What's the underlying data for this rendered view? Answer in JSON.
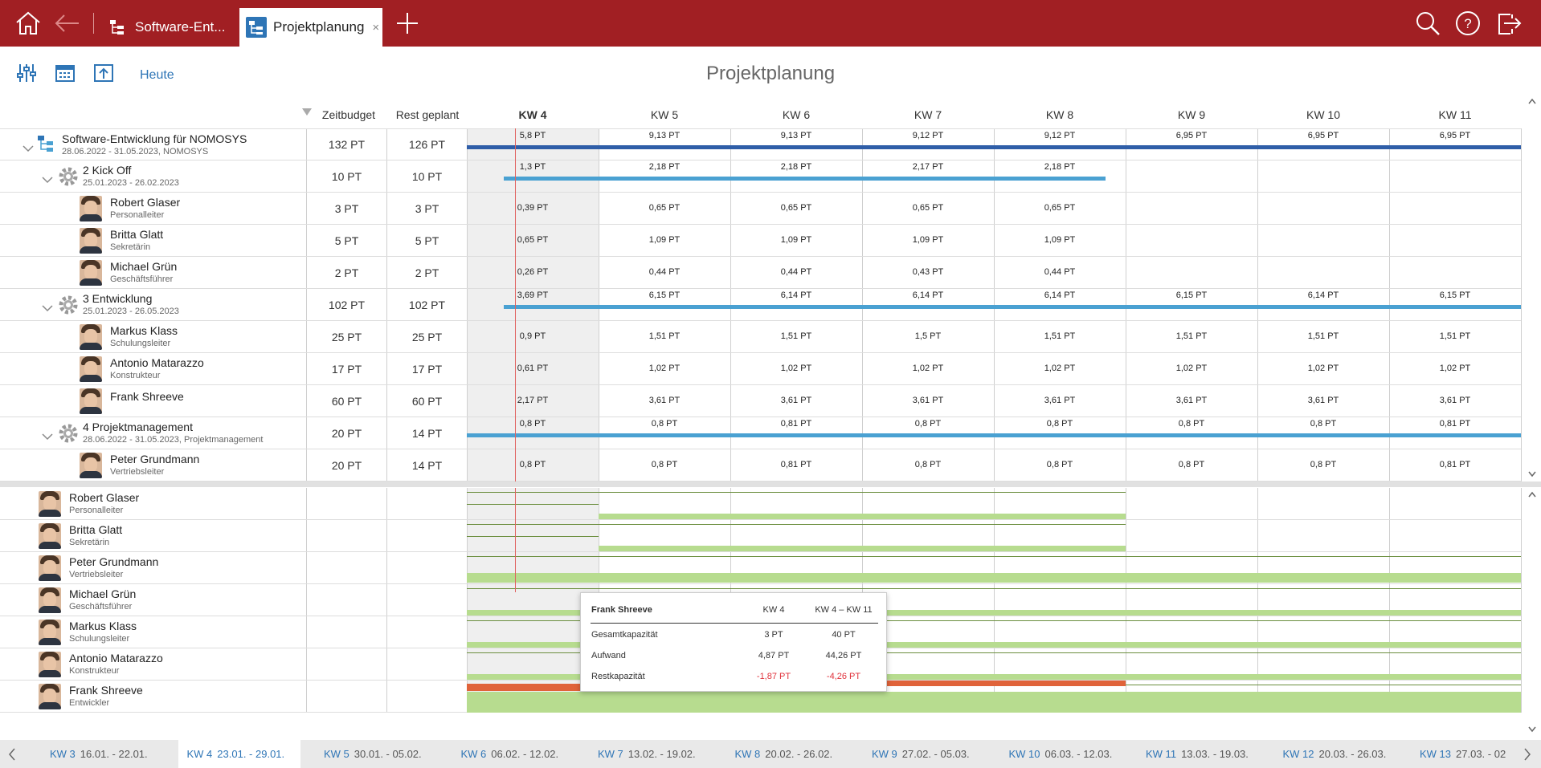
{
  "colors": {
    "topbar": "#a11f23",
    "link": "#2e75b6",
    "bar_dark": "#2f5ea8",
    "bar_light": "#4aa1d2",
    "capacity_green": "#b7dc8f",
    "overload": "#e0633a",
    "negative": "#e0303a"
  },
  "topbar": {
    "icons": [
      "home-icon",
      "back-arrow-icon",
      "search-icon",
      "help-icon",
      "logout-icon"
    ],
    "tabs": [
      {
        "label": "Software-Ent...",
        "icon": "project-tree-icon"
      },
      {
        "label": "Projektplanung",
        "icon": "project-planning-icon",
        "close": "×"
      }
    ],
    "add_tab": "+"
  },
  "toolbar": {
    "icons": [
      "settings-sliders-icon",
      "calendar-icon",
      "export-icon"
    ],
    "today_label": "Heute"
  },
  "page_title": "Projektplanung",
  "columns": {
    "zeitbudget": "Zeitbudget",
    "rest": "Rest geplant",
    "weeks": [
      "KW 4",
      "KW 5",
      "KW 6",
      "KW 7",
      "KW 8",
      "KW 9",
      "KW 10",
      "KW 11"
    ]
  },
  "rows": [
    {
      "name": "Software-Entwicklung für NOMOSYS",
      "sub": "28.06.2022 - 31.05.2023, NOMOSYS",
      "budget": "132 PT",
      "rest": "126 PT",
      "vals": [
        "5,8 PT",
        "9,13 PT",
        "9,13 PT",
        "9,12 PT",
        "9,12 PT",
        "6,95 PT",
        "6,95 PT",
        "6,95 PT"
      ]
    },
    {
      "name": "2 Kick Off",
      "sub": "25.01.2023 - 26.02.2023",
      "budget": "10 PT",
      "rest": "10 PT",
      "vals": [
        "1,3 PT",
        "2,18 PT",
        "2,18 PT",
        "2,17 PT",
        "2,18 PT"
      ]
    },
    {
      "name": "Robert Glaser",
      "sub": "Personalleiter",
      "budget": "3 PT",
      "rest": "3 PT",
      "vals": [
        "0,39 PT",
        "0,65 PT",
        "0,65 PT",
        "0,65 PT",
        "0,65 PT"
      ]
    },
    {
      "name": "Britta Glatt",
      "sub": "Sekretärin",
      "budget": "5 PT",
      "rest": "5 PT",
      "vals": [
        "0,65 PT",
        "1,09 PT",
        "1,09 PT",
        "1,09 PT",
        "1,09 PT"
      ]
    },
    {
      "name": "Michael Grün",
      "sub": "Geschäftsführer",
      "budget": "2 PT",
      "rest": "2 PT",
      "vals": [
        "0,26 PT",
        "0,44 PT",
        "0,44 PT",
        "0,43 PT",
        "0,44 PT"
      ]
    },
    {
      "name": "3 Entwicklung",
      "sub": "25.01.2023 - 26.05.2023",
      "budget": "102 PT",
      "rest": "102 PT",
      "vals": [
        "3,69 PT",
        "6,15 PT",
        "6,14 PT",
        "6,14 PT",
        "6,14 PT",
        "6,15 PT",
        "6,14 PT",
        "6,15 PT"
      ]
    },
    {
      "name": "Markus Klass",
      "sub": "Schulungsleiter",
      "budget": "25 PT",
      "rest": "25 PT",
      "vals": [
        "0,9 PT",
        "1,51 PT",
        "1,51 PT",
        "1,5 PT",
        "1,51 PT",
        "1,51 PT",
        "1,51 PT",
        "1,51 PT"
      ]
    },
    {
      "name": "Antonio Matarazzo",
      "sub": "Konstrukteur",
      "budget": "17 PT",
      "rest": "17 PT",
      "vals": [
        "0,61 PT",
        "1,02 PT",
        "1,02 PT",
        "1,02 PT",
        "1,02 PT",
        "1,02 PT",
        "1,02 PT",
        "1,02 PT"
      ]
    },
    {
      "name": "Frank Shreeve",
      "sub": "",
      "budget": "60 PT",
      "rest": "60 PT",
      "vals": [
        "2,17 PT",
        "3,61 PT",
        "3,61 PT",
        "3,61 PT",
        "3,61 PT",
        "3,61 PT",
        "3,61 PT",
        "3,61 PT"
      ]
    },
    {
      "name": "4 Projektmanagement",
      "sub": "28.06.2022 - 31.05.2023, Projektmanagement",
      "budget": "20 PT",
      "rest": "14 PT",
      "vals": [
        "0,8 PT",
        "0,8 PT",
        "0,81 PT",
        "0,8 PT",
        "0,8 PT",
        "0,8 PT",
        "0,8 PT",
        "0,81 PT"
      ]
    },
    {
      "name": "Peter Grundmann",
      "sub": "Vertriebsleiter",
      "budget": "20 PT",
      "rest": "14 PT",
      "vals": [
        "0,8 PT",
        "0,8 PT",
        "0,81 PT",
        "0,8 PT",
        "0,8 PT",
        "0,8 PT",
        "0,8 PT",
        "0,81 PT"
      ]
    }
  ],
  "resources": [
    {
      "name": "Robert Glaser",
      "role": "Personalleiter"
    },
    {
      "name": "Britta Glatt",
      "role": "Sekretärin"
    },
    {
      "name": "Peter Grundmann",
      "role": "Vertriebsleiter"
    },
    {
      "name": "Michael Grün",
      "role": "Geschäftsführer"
    },
    {
      "name": "Markus Klass",
      "role": "Schulungsleiter"
    },
    {
      "name": "Antonio Matarazzo",
      "role": "Konstrukteur"
    },
    {
      "name": "Frank Shreeve",
      "role": "Entwickler"
    }
  ],
  "tooltip": {
    "name": "Frank Shreeve",
    "col1": "KW 4",
    "col2": "KW 4 – KW 11",
    "rows": [
      {
        "label": "Gesamtkapazität",
        "v1": "3 PT",
        "v2": "40 PT"
      },
      {
        "label": "Aufwand",
        "v1": "4,87 PT",
        "v2": "44,26 PT"
      },
      {
        "label": "Restkapazität",
        "v1": "-1,87 PT",
        "v2": "-4,26 PT"
      }
    ]
  },
  "bottom_weeks": [
    {
      "kw": "KW 3",
      "range": "16.01. - 22.01."
    },
    {
      "kw": "KW 4",
      "range": "23.01. - 29.01."
    },
    {
      "kw": "KW 5",
      "range": "30.01. - 05.02."
    },
    {
      "kw": "KW 6",
      "range": "06.02. - 12.02."
    },
    {
      "kw": "KW 7",
      "range": "13.02. - 19.02."
    },
    {
      "kw": "KW 8",
      "range": "20.02. - 26.02."
    },
    {
      "kw": "KW 9",
      "range": "27.02. - 05.03."
    },
    {
      "kw": "KW 10",
      "range": "06.03. - 12.03."
    },
    {
      "kw": "KW 11",
      "range": "13.03. - 19.03."
    },
    {
      "kw": "KW 12",
      "range": "20.03. - 26.03."
    },
    {
      "kw": "KW 13",
      "range": "27.03. - 02"
    }
  ]
}
